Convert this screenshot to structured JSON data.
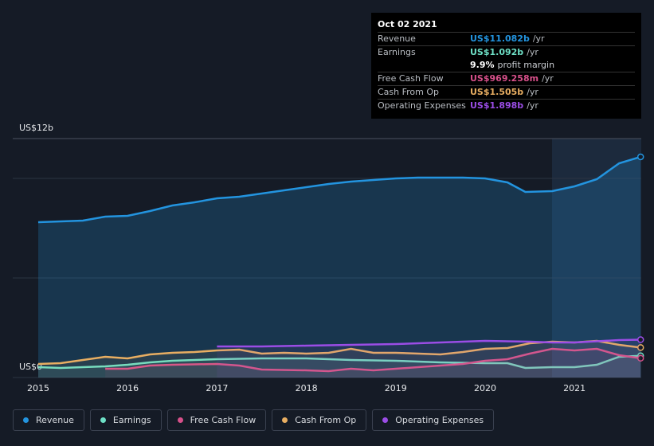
{
  "chart_data": {
    "type": "line",
    "ylim": [
      0,
      12
    ],
    "xlim": [
      2014.715,
      2021.747
    ],
    "yticks": [
      {
        "value": 0,
        "label": "US$0"
      },
      {
        "value": 5,
        "label": null
      },
      {
        "value": 10,
        "label": null
      },
      {
        "value": 12,
        "label": "US$12b"
      }
    ],
    "xticks": [
      2015,
      2016,
      2017,
      2018,
      2019,
      2020,
      2021
    ],
    "series": [
      {
        "name": "Revenue",
        "color": "#2394df",
        "x": [
          2015,
          2015.5,
          2015.75,
          2016,
          2016.25,
          2016.5,
          2016.75,
          2017,
          2017.25,
          2017.5,
          2017.75,
          2018,
          2018.25,
          2018.5,
          2018.75,
          2019,
          2019.25,
          2019.5,
          2019.75,
          2020,
          2020.25,
          2020.45,
          2020.75,
          2021,
          2021.25,
          2021.5,
          2021.74
        ],
        "values": [
          7.8,
          7.88,
          8.08,
          8.12,
          8.36,
          8.64,
          8.8,
          9.0,
          9.08,
          9.24,
          9.4,
          9.56,
          9.72,
          9.84,
          9.92,
          10.0,
          10.04,
          10.04,
          10.04,
          10.0,
          9.8,
          9.32,
          9.36,
          9.6,
          9.96,
          10.76,
          11.082
        ]
      },
      {
        "name": "Earnings",
        "color": "#6ee0c6",
        "x": [
          2015,
          2015.25,
          2015.75,
          2016,
          2016.25,
          2016.5,
          2017,
          2017.5,
          2018,
          2018.5,
          2019,
          2019.5,
          2020,
          2020.25,
          2020.45,
          2020.75,
          2021,
          2021.25,
          2021.5,
          2021.74
        ],
        "values": [
          0.52,
          0.48,
          0.56,
          0.64,
          0.76,
          0.84,
          0.92,
          0.96,
          0.96,
          0.88,
          0.84,
          0.76,
          0.72,
          0.72,
          0.48,
          0.52,
          0.52,
          0.64,
          1.04,
          1.092
        ]
      },
      {
        "name": "Free Cash Flow",
        "color": "#d7508a",
        "x": [
          2015.75,
          2016,
          2016.25,
          2016.5,
          2017,
          2017.25,
          2017.5,
          2018,
          2018.25,
          2018.5,
          2018.75,
          2019,
          2019.25,
          2019.75,
          2020,
          2020.25,
          2020.5,
          2020.75,
          2021,
          2021.25,
          2021.5,
          2021.74
        ],
        "values": [
          0.44,
          0.44,
          0.6,
          0.64,
          0.68,
          0.6,
          0.4,
          0.36,
          0.32,
          0.44,
          0.36,
          0.44,
          0.52,
          0.68,
          0.84,
          0.92,
          1.2,
          1.44,
          1.36,
          1.44,
          1.12,
          0.969
        ]
      },
      {
        "name": "Cash From Op",
        "color": "#e8ae62",
        "x": [
          2015,
          2015.25,
          2015.5,
          2015.75,
          2016,
          2016.25,
          2016.5,
          2016.75,
          2017,
          2017.25,
          2017.5,
          2017.75,
          2018,
          2018.25,
          2018.5,
          2018.75,
          2019,
          2019.5,
          2019.75,
          2020,
          2020.25,
          2020.5,
          2020.75,
          2021,
          2021.25,
          2021.5,
          2021.74
        ],
        "values": [
          0.68,
          0.72,
          0.88,
          1.04,
          0.96,
          1.16,
          1.24,
          1.28,
          1.36,
          1.4,
          1.2,
          1.24,
          1.2,
          1.24,
          1.44,
          1.24,
          1.24,
          1.16,
          1.28,
          1.44,
          1.48,
          1.72,
          1.8,
          1.76,
          1.84,
          1.64,
          1.505
        ]
      },
      {
        "name": "Operating Expenses",
        "color": "#9b4de6",
        "x": [
          2017,
          2017.5,
          2018,
          2018.5,
          2019,
          2019.5,
          2020,
          2020.5,
          2020.75,
          2021,
          2021.5,
          2021.74
        ],
        "values": [
          1.56,
          1.56,
          1.6,
          1.64,
          1.68,
          1.76,
          1.84,
          1.8,
          1.76,
          1.76,
          1.88,
          1.898
        ]
      }
    ]
  },
  "tooltip": {
    "date": "Oct 02 2021",
    "rows": [
      {
        "label": "Revenue",
        "value": "US$11.082b",
        "unit": "/yr"
      },
      {
        "label": "Earnings",
        "value": "US$1.092b",
        "unit": "/yr",
        "margin": "9.9%",
        "margin_label": "profit margin"
      },
      {
        "label": "Free Cash Flow",
        "value": "US$969.258m",
        "unit": "/yr"
      },
      {
        "label": "Cash From Op",
        "value": "US$1.505b",
        "unit": "/yr"
      },
      {
        "label": "Operating Expenses",
        "value": "US$1.898b",
        "unit": "/yr"
      }
    ]
  }
}
